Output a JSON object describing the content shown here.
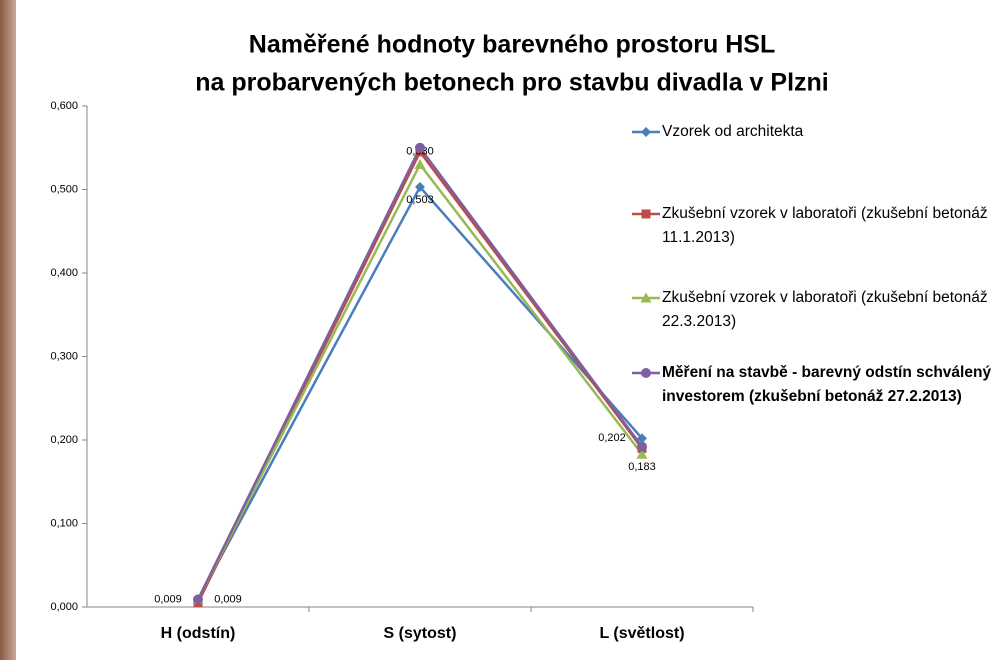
{
  "chart_data": {
    "type": "line",
    "title": [
      "Naměřené hodnoty barevného prostoru HSL",
      "na probarvených betonech pro stavbu divadla v Plzni"
    ],
    "categories": [
      "H (odstín)",
      "S (sytost)",
      "L (světlost)"
    ],
    "ylim": [
      0,
      0.6
    ],
    "yticks": [
      {
        "value": 0,
        "label": "0,000"
      },
      {
        "value": 0.1,
        "label": "0,100"
      },
      {
        "value": 0.2,
        "label": "0,200"
      },
      {
        "value": 0.3,
        "label": "0,300"
      },
      {
        "value": 0.4,
        "label": "0,400"
      },
      {
        "value": 0.5,
        "label": "0,500"
      },
      {
        "value": 0.6,
        "label": "0,600"
      }
    ],
    "grid": false,
    "legend": "right",
    "series": [
      {
        "name": "Vzorek od architekta",
        "color": "#4a7ebb",
        "marker": "diamond",
        "values": [
          0.009,
          0.503,
          0.202
        ],
        "value_labels": [
          "0,009",
          "0,503",
          "0,202"
        ]
      },
      {
        "name": "Zkušební vzorek v laboratoři (zkušební betonáž 11.1.2013)",
        "color": "#be4b48",
        "marker": "square",
        "values": [
          0.005,
          0.545,
          0.19
        ]
      },
      {
        "name": "Zkušební vzorek v laboratoři (zkušební betonáž 22.3.2013)",
        "color": "#98b954",
        "marker": "triangle",
        "values": [
          0.009,
          0.53,
          0.183
        ],
        "value_labels": [
          "0,009",
          "0,530",
          "0,183"
        ]
      },
      {
        "name": "Měření na stavbě - barevný odstín schválený investorem (zkušební betonáž 27.2.2013)",
        "color": "#7d60a0",
        "marker": "circle",
        "values": [
          0.009,
          0.55,
          0.192
        ],
        "bold_legend": true
      }
    ]
  }
}
